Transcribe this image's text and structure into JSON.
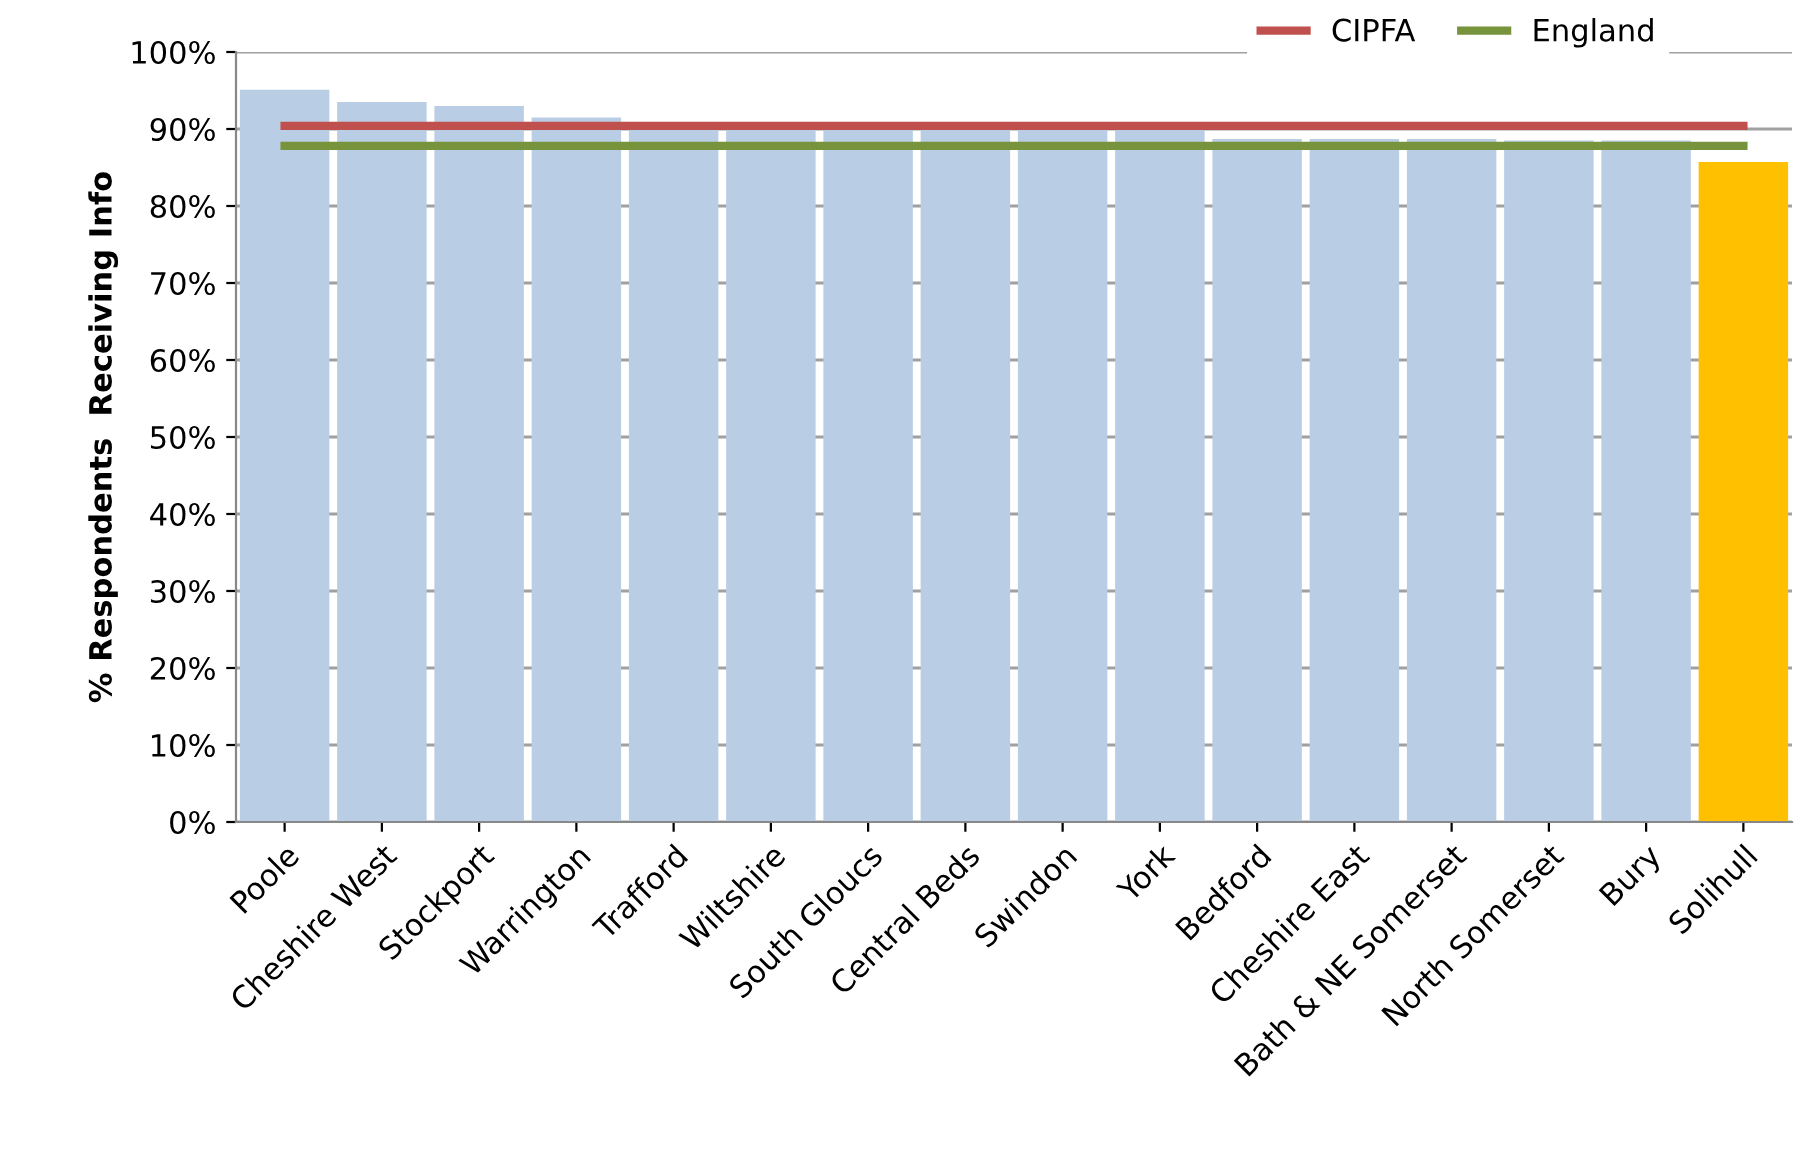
{
  "chart_data": {
    "type": "bar",
    "ylabel": "% Respondents  Receiving Info",
    "categories": [
      "Poole",
      "Cheshire West",
      "Stockport",
      "Warrington",
      "Trafford",
      "Wiltshire",
      "South Gloucs",
      "Central Beds",
      "Swindon",
      "York",
      "Bedford",
      "Cheshire East",
      "Bath & NE Somerset",
      "North Somerset",
      "Bury",
      "Solihull"
    ],
    "series": [
      {
        "values": [
          95.1,
          93.5,
          93.0,
          91.5,
          90.6,
          90.6,
          90.6,
          90.6,
          90.6,
          90.6,
          88.7,
          88.7,
          88.7,
          88.5,
          88.5,
          85.7
        ],
        "colors": [
          "#b9cde5",
          "#b9cde5",
          "#b9cde5",
          "#b9cde5",
          "#b9cde5",
          "#b9cde5",
          "#b9cde5",
          "#b9cde5",
          "#b9cde5",
          "#b9cde5",
          "#b9cde5",
          "#b9cde5",
          "#b9cde5",
          "#b9cde5",
          "#b9cde5",
          "#ffc000"
        ]
      },
      {
        "type": "line",
        "name": "CIPFA",
        "color": "#c0504d",
        "values": [
          90.4,
          90.4,
          90.4,
          90.4,
          90.4,
          90.4,
          90.4,
          90.4,
          90.4,
          90.4,
          90.4,
          90.4,
          90.4,
          90.4,
          90.4,
          90.4
        ]
      },
      {
        "type": "line",
        "name": "England",
        "color": "#77933c",
        "values": [
          87.8,
          87.8,
          87.8,
          87.8,
          87.8,
          87.8,
          87.8,
          87.8,
          87.8,
          87.8,
          87.8,
          87.8,
          87.8,
          87.8,
          87.8,
          87.8
        ]
      }
    ],
    "ylim": [
      0,
      100
    ],
    "yticks": [
      {
        "value": 0,
        "label": "0%"
      },
      {
        "value": 10,
        "label": "10%"
      },
      {
        "value": 20,
        "label": "20%"
      },
      {
        "value": 30,
        "label": "30%"
      },
      {
        "value": 40,
        "label": "40%"
      },
      {
        "value": 50,
        "label": "50%"
      },
      {
        "value": 60,
        "label": "60%"
      },
      {
        "value": 70,
        "label": "70%"
      },
      {
        "value": 80,
        "label": "80%"
      },
      {
        "value": 90,
        "label": "90%"
      },
      {
        "value": 100,
        "label": "100%"
      }
    ],
    "grid": "y",
    "legend": "top right",
    "marker": "none",
    "line_style": "solid"
  }
}
